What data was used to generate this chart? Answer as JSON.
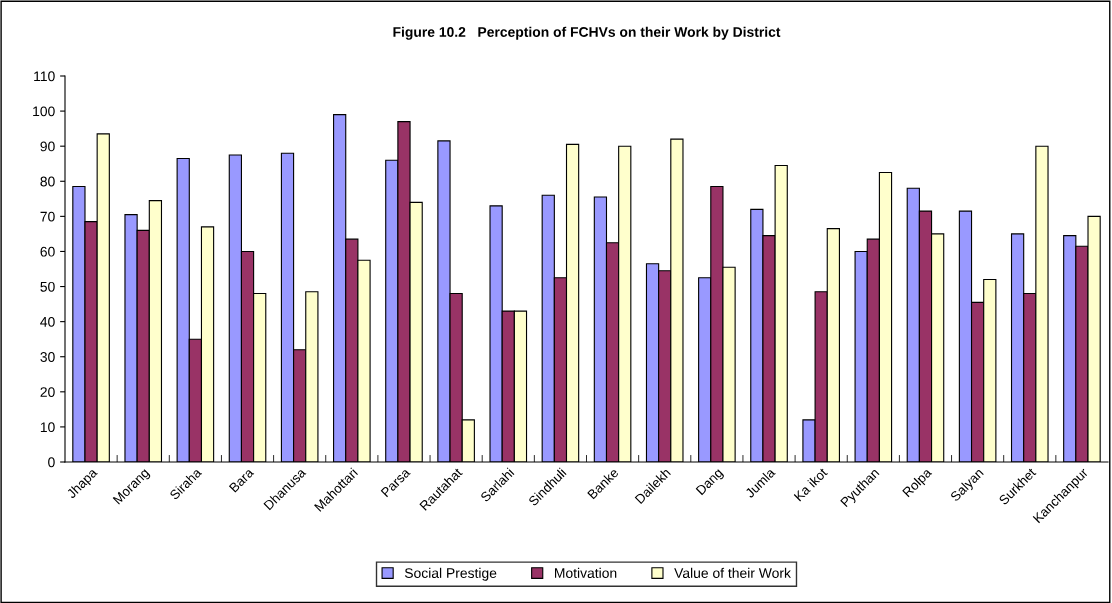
{
  "chart_data": {
    "type": "bar",
    "title": "Figure 10.2   Perception of FCHVs on their Work by District",
    "categories": [
      "Jhapa",
      "Morang",
      "Siraha",
      "Bara",
      "Dhanusa",
      "Mahottari",
      "Parsa",
      "Rautahat",
      "Sarlahi",
      "Sindhuli",
      "Banke",
      "Dailekh",
      "Dang",
      "Jumla",
      "Ka ikot",
      "Pyuthan",
      "Rolpa",
      "Salyan",
      "Surkhet",
      "Kanchanpur"
    ],
    "series": [
      {
        "name": "Social Prestige",
        "color": "#9999ff",
        "values": [
          78.5,
          70.5,
          86.5,
          87.5,
          88,
          99,
          86,
          91.5,
          73,
          76,
          75.5,
          56.5,
          52.5,
          72,
          12,
          60,
          78,
          71.5,
          65,
          64.5
        ]
      },
      {
        "name": "Motivation",
        "color": "#993366",
        "values": [
          68.5,
          66,
          35,
          60,
          32,
          63.5,
          97,
          48,
          43,
          52.5,
          62.5,
          54.5,
          78.5,
          64.5,
          48.5,
          63.5,
          71.5,
          45.5,
          48,
          61.5
        ]
      },
      {
        "name": "Value of their Work",
        "color": "#ffffcc",
        "values": [
          93.5,
          74.5,
          67,
          48,
          48.5,
          57.5,
          74,
          12,
          43,
          90.5,
          90,
          92,
          55.5,
          84.5,
          66.5,
          82.5,
          65,
          52,
          90,
          70
        ]
      }
    ],
    "ylim": [
      0,
      110
    ],
    "yticks": [
      0,
      10,
      20,
      30,
      40,
      50,
      60,
      70,
      80,
      90,
      100,
      110
    ],
    "grid": false,
    "legend": "bottom"
  }
}
